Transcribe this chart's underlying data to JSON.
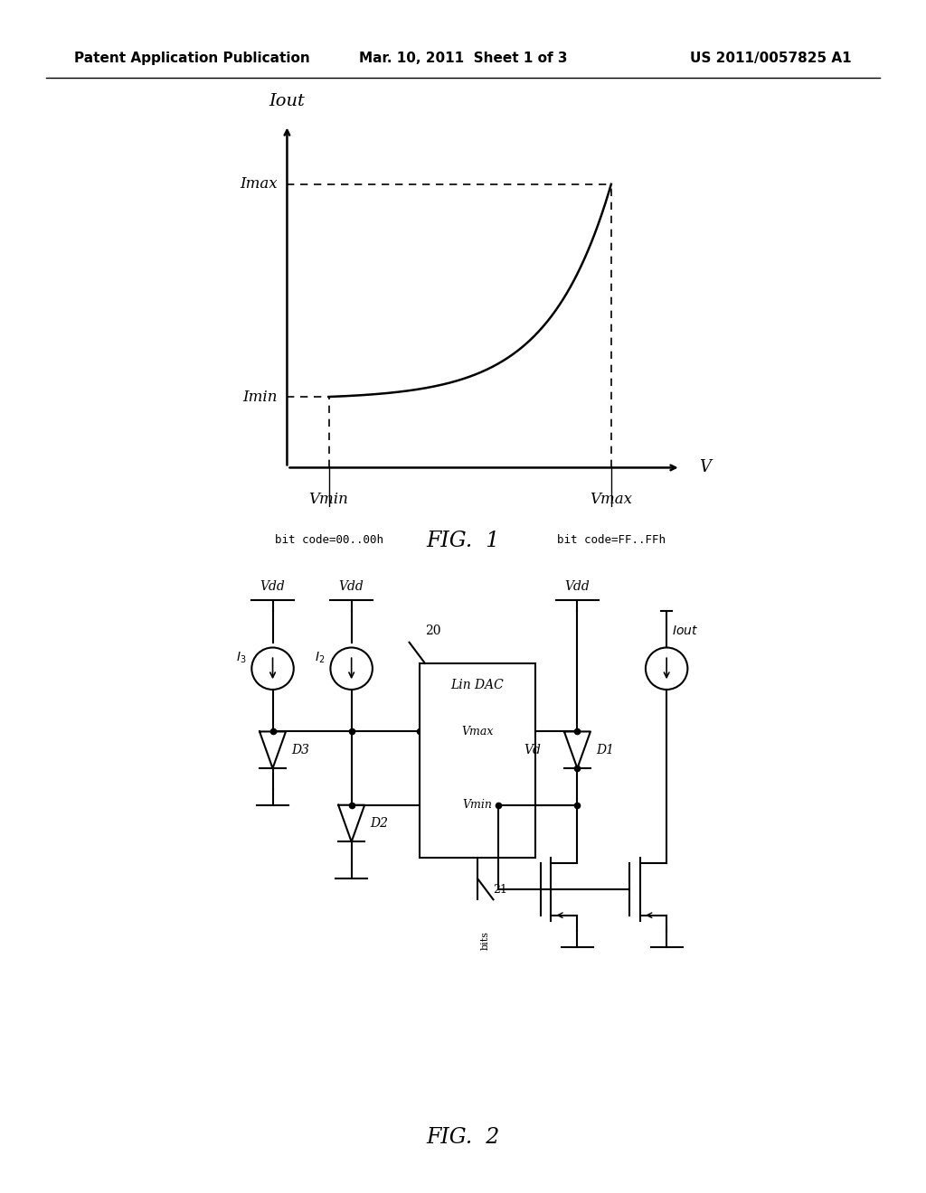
{
  "background_color": "#ffffff",
  "header_left": "Patent Application Publication",
  "header_center": "Mar. 10, 2011  Sheet 1 of 3",
  "header_right": "US 2011/0057825 A1",
  "header_fontsize": 11,
  "fig1_caption": "FIG.  1",
  "fig2_caption": "FIG.  2",
  "fig1_ylabel": "Iout",
  "fig1_xlabel": "V",
  "fig1_imax_label": "Imax",
  "fig1_imin_label": "Imin",
  "fig1_vmin_label": "Vmin",
  "fig1_vmax_label": "Vmax",
  "fig1_bitcode_left": "bit code=00..00h",
  "fig1_bitcode_right": "bit code=FF..FFh",
  "curve_color": "#000000",
  "line_color": "#000000"
}
